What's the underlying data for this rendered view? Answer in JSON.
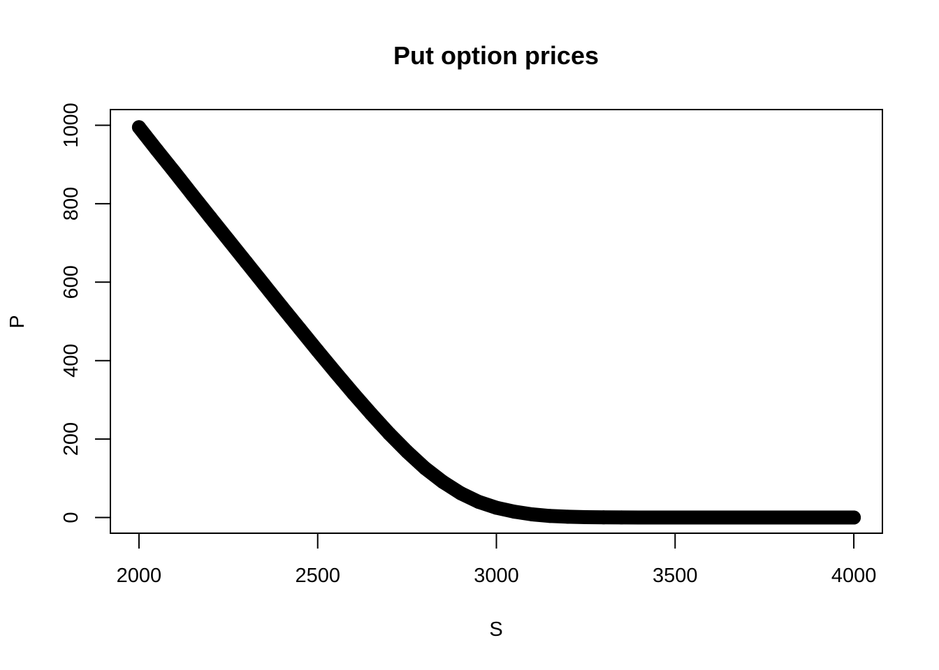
{
  "chart_data": {
    "type": "scatter",
    "title": "Put option prices",
    "xlabel": "S",
    "ylabel": "P",
    "xlim": [
      1920,
      4080
    ],
    "ylim": [
      -40,
      1040
    ],
    "x_ticks": [
      2000,
      2500,
      3000,
      3500,
      4000
    ],
    "y_ticks": [
      0,
      200,
      400,
      600,
      800,
      1000
    ],
    "grid": false,
    "legend": "none",
    "series": [
      {
        "marker_color": "#000000",
        "points": [
          [
            2000,
            995
          ],
          [
            2050,
            937
          ],
          [
            2100,
            880
          ],
          [
            2150,
            822
          ],
          [
            2200,
            765
          ],
          [
            2250,
            708
          ],
          [
            2300,
            651
          ],
          [
            2350,
            594
          ],
          [
            2400,
            537
          ],
          [
            2450,
            481
          ],
          [
            2500,
            425
          ],
          [
            2550,
            370
          ],
          [
            2600,
            316
          ],
          [
            2650,
            264
          ],
          [
            2700,
            214
          ],
          [
            2750,
            168
          ],
          [
            2800,
            126
          ],
          [
            2850,
            91
          ],
          [
            2900,
            62
          ],
          [
            2950,
            40
          ],
          [
            3000,
            25
          ],
          [
            3050,
            15
          ],
          [
            3100,
            8
          ],
          [
            3150,
            4
          ],
          [
            3200,
            2
          ],
          [
            3250,
            1
          ],
          [
            3300,
            0.5
          ],
          [
            3350,
            0.2
          ],
          [
            3400,
            0.1
          ],
          [
            3500,
            0
          ],
          [
            3600,
            0
          ],
          [
            3700,
            0
          ],
          [
            3800,
            0
          ],
          [
            3900,
            0
          ],
          [
            4000,
            0
          ]
        ]
      }
    ]
  }
}
